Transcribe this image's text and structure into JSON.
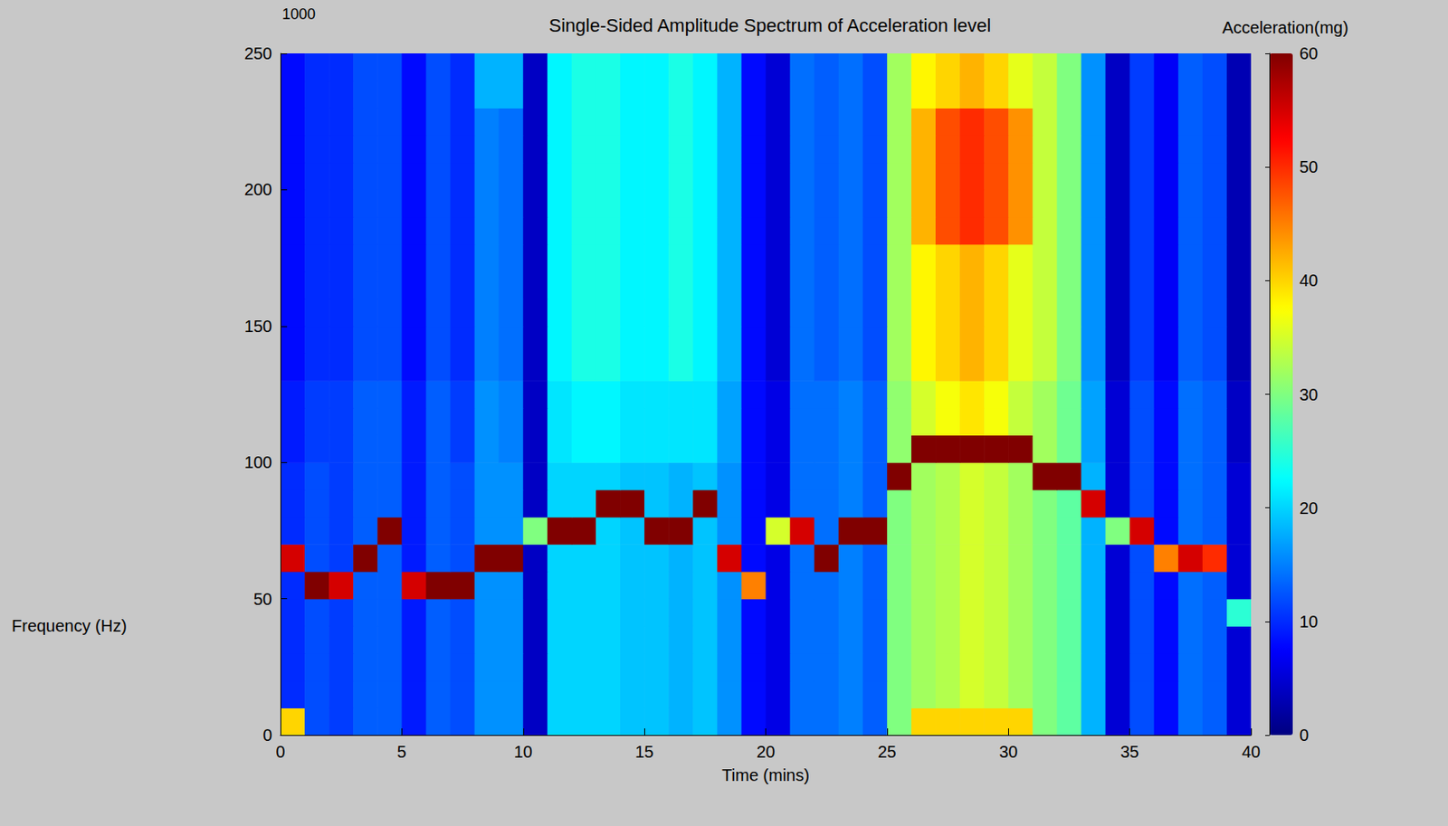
{
  "chart_data": {
    "type": "heatmap",
    "title": "Single-Sided Amplitude Spectrum of Acceleration level",
    "x_label": "Time (mins)",
    "y_label": "Frequency (Hz)",
    "annotations": [
      "1000"
    ],
    "xlim": [
      0,
      40
    ],
    "xticks": [
      0,
      5,
      10,
      15,
      20,
      25,
      30,
      35,
      40
    ],
    "ylim": [
      0,
      250
    ],
    "yticks": [
      0,
      50,
      100,
      150,
      200,
      250
    ],
    "x_edges": [
      0,
      1,
      2,
      3,
      4,
      5,
      6,
      7,
      8,
      9,
      10,
      11,
      12,
      13,
      14,
      15,
      16,
      17,
      18,
      19,
      20,
      21,
      22,
      23,
      24,
      25,
      26,
      27,
      28,
      29,
      30,
      31,
      32,
      33,
      34,
      35,
      36,
      37,
      38,
      39,
      40
    ],
    "y_edges": [
      0,
      10,
      20,
      30,
      40,
      50,
      60,
      70,
      80,
      90,
      100,
      110,
      120,
      130,
      140,
      150,
      160,
      170,
      180,
      190,
      200,
      210,
      220,
      230,
      240,
      250
    ],
    "z": [
      [
        40,
        12,
        11,
        13,
        13,
        9,
        13,
        12,
        16,
        16,
        4,
        20,
        20,
        20,
        19,
        19,
        18,
        19,
        16,
        8,
        6,
        14,
        14,
        15,
        13,
        30,
        40,
        40,
        40,
        40,
        40,
        30,
        28,
        18,
        5,
        12,
        8,
        14,
        13,
        5
      ],
      [
        10,
        12,
        11,
        13,
        13,
        9,
        13,
        12,
        16,
        16,
        4,
        20,
        20,
        20,
        19,
        19,
        18,
        19,
        16,
        8,
        6,
        14,
        14,
        15,
        13,
        30,
        32,
        33,
        35,
        34,
        32,
        30,
        28,
        18,
        5,
        12,
        8,
        14,
        13,
        5
      ],
      [
        10,
        12,
        11,
        13,
        13,
        9,
        13,
        12,
        16,
        16,
        4,
        20,
        20,
        20,
        19,
        19,
        18,
        19,
        16,
        8,
        6,
        14,
        14,
        15,
        13,
        30,
        32,
        33,
        35,
        34,
        32,
        30,
        28,
        18,
        5,
        12,
        8,
        14,
        13,
        5
      ],
      [
        10,
        12,
        11,
        13,
        13,
        9,
        13,
        12,
        16,
        16,
        4,
        20,
        20,
        20,
        19,
        19,
        18,
        19,
        16,
        8,
        6,
        14,
        14,
        15,
        13,
        30,
        32,
        33,
        35,
        34,
        32,
        30,
        28,
        18,
        5,
        12,
        8,
        14,
        13,
        5
      ],
      [
        10,
        12,
        11,
        13,
        13,
        9,
        13,
        12,
        16,
        16,
        4,
        20,
        20,
        20,
        19,
        19,
        18,
        19,
        16,
        8,
        6,
        14,
        14,
        15,
        13,
        30,
        32,
        33,
        35,
        34,
        32,
        30,
        28,
        18,
        5,
        12,
        8,
        14,
        13,
        25
      ],
      [
        10,
        60,
        55,
        13,
        13,
        55,
        60,
        60,
        16,
        16,
        4,
        20,
        20,
        20,
        19,
        19,
        18,
        19,
        16,
        45,
        6,
        14,
        14,
        15,
        13,
        30,
        32,
        33,
        35,
        34,
        32,
        30,
        28,
        18,
        5,
        12,
        8,
        14,
        13,
        5
      ],
      [
        55,
        12,
        11,
        60,
        13,
        9,
        13,
        12,
        60,
        60,
        4,
        20,
        20,
        20,
        19,
        19,
        18,
        19,
        55,
        8,
        6,
        14,
        60,
        15,
        13,
        30,
        32,
        33,
        35,
        34,
        32,
        30,
        28,
        18,
        5,
        12,
        45,
        55,
        50,
        5
      ],
      [
        10,
        12,
        11,
        13,
        60,
        9,
        13,
        12,
        16,
        16,
        30,
        60,
        60,
        20,
        19,
        60,
        60,
        19,
        16,
        8,
        35,
        55,
        14,
        60,
        60,
        30,
        32,
        33,
        35,
        34,
        32,
        30,
        28,
        18,
        30,
        55,
        8,
        14,
        13,
        5
      ],
      [
        10,
        12,
        11,
        13,
        13,
        9,
        13,
        12,
        16,
        16,
        4,
        20,
        20,
        60,
        60,
        19,
        18,
        60,
        16,
        8,
        6,
        14,
        14,
        15,
        13,
        30,
        32,
        33,
        35,
        34,
        32,
        30,
        28,
        55,
        5,
        12,
        8,
        14,
        13,
        5
      ],
      [
        10,
        12,
        11,
        13,
        13,
        9,
        13,
        12,
        16,
        16,
        4,
        20,
        20,
        20,
        19,
        19,
        18,
        19,
        16,
        8,
        6,
        14,
        14,
        15,
        13,
        60,
        32,
        33,
        35,
        34,
        32,
        60,
        60,
        18,
        5,
        12,
        8,
        14,
        13,
        5
      ],
      [
        9,
        11,
        11,
        13,
        13,
        9,
        13,
        11,
        16,
        15,
        4,
        21,
        22,
        22,
        21,
        21,
        21,
        21,
        17,
        8,
        6,
        14,
        14,
        15,
        13,
        31,
        60,
        60,
        60,
        60,
        60,
        32,
        29,
        17,
        5,
        12,
        8,
        14,
        13,
        4
      ],
      [
        9,
        11,
        11,
        13,
        13,
        9,
        13,
        11,
        16,
        15,
        4,
        21,
        22,
        22,
        21,
        21,
        21,
        21,
        17,
        8,
        6,
        14,
        14,
        15,
        13,
        31,
        35,
        37,
        39,
        37,
        34,
        32,
        29,
        17,
        5,
        12,
        8,
        14,
        13,
        4
      ],
      [
        9,
        11,
        11,
        13,
        13,
        9,
        13,
        11,
        16,
        15,
        4,
        21,
        22,
        22,
        21,
        21,
        21,
        21,
        17,
        8,
        6,
        14,
        14,
        15,
        13,
        31,
        35,
        37,
        39,
        37,
        34,
        32,
        29,
        17,
        5,
        12,
        8,
        14,
        13,
        4
      ],
      [
        8,
        10,
        10,
        12,
        12,
        8,
        12,
        10,
        15,
        14,
        4,
        22,
        24,
        24,
        22,
        22,
        24,
        22,
        18,
        8,
        5,
        14,
        13,
        14,
        12,
        32,
        38,
        40,
        42,
        40,
        36,
        34,
        30,
        16,
        4,
        11,
        7,
        13,
        12,
        3
      ],
      [
        8,
        10,
        10,
        12,
        12,
        8,
        12,
        10,
        15,
        14,
        4,
        22,
        24,
        24,
        22,
        22,
        24,
        22,
        18,
        8,
        5,
        14,
        13,
        14,
        12,
        32,
        38,
        40,
        42,
        40,
        36,
        34,
        30,
        16,
        4,
        11,
        7,
        13,
        12,
        3
      ],
      [
        8,
        10,
        10,
        12,
        12,
        8,
        12,
        10,
        15,
        14,
        4,
        22,
        24,
        24,
        22,
        22,
        24,
        22,
        18,
        8,
        5,
        14,
        13,
        14,
        12,
        32,
        38,
        40,
        42,
        40,
        36,
        34,
        30,
        16,
        4,
        11,
        7,
        13,
        12,
        3
      ],
      [
        8,
        10,
        10,
        12,
        12,
        8,
        12,
        10,
        15,
        14,
        4,
        22,
        24,
        24,
        22,
        22,
        24,
        22,
        18,
        8,
        5,
        14,
        13,
        14,
        12,
        32,
        38,
        40,
        42,
        40,
        36,
        34,
        30,
        16,
        4,
        11,
        7,
        13,
        12,
        3
      ],
      [
        8,
        10,
        10,
        12,
        12,
        8,
        12,
        10,
        15,
        14,
        4,
        22,
        24,
        24,
        22,
        22,
        24,
        22,
        18,
        8,
        5,
        14,
        13,
        14,
        12,
        32,
        38,
        40,
        42,
        40,
        36,
        34,
        30,
        16,
        4,
        11,
        7,
        13,
        12,
        3
      ],
      [
        8,
        10,
        10,
        12,
        12,
        8,
        12,
        10,
        15,
        14,
        4,
        22,
        24,
        24,
        22,
        22,
        24,
        22,
        18,
        8,
        5,
        14,
        13,
        14,
        12,
        32,
        42,
        48,
        50,
        48,
        44,
        34,
        30,
        16,
        4,
        11,
        7,
        13,
        12,
        3
      ],
      [
        8,
        10,
        10,
        12,
        12,
        8,
        12,
        10,
        15,
        14,
        4,
        22,
        24,
        24,
        22,
        22,
        24,
        22,
        18,
        8,
        5,
        14,
        13,
        14,
        12,
        32,
        42,
        48,
        50,
        48,
        44,
        34,
        30,
        16,
        4,
        11,
        7,
        13,
        12,
        3
      ],
      [
        8,
        10,
        10,
        12,
        12,
        8,
        12,
        10,
        15,
        14,
        4,
        22,
        24,
        24,
        22,
        22,
        24,
        22,
        18,
        8,
        5,
        14,
        13,
        14,
        12,
        32,
        42,
        48,
        50,
        48,
        44,
        34,
        30,
        16,
        4,
        11,
        7,
        13,
        12,
        3
      ],
      [
        8,
        10,
        10,
        12,
        12,
        8,
        12,
        10,
        15,
        14,
        4,
        22,
        24,
        24,
        22,
        22,
        24,
        22,
        18,
        8,
        5,
        14,
        13,
        14,
        12,
        32,
        42,
        48,
        50,
        48,
        44,
        34,
        30,
        16,
        4,
        11,
        7,
        13,
        12,
        3
      ],
      [
        8,
        10,
        10,
        12,
        12,
        8,
        12,
        10,
        15,
        14,
        4,
        22,
        24,
        24,
        22,
        22,
        24,
        22,
        18,
        8,
        5,
        14,
        13,
        14,
        12,
        32,
        42,
        48,
        50,
        48,
        44,
        34,
        30,
        16,
        4,
        11,
        7,
        13,
        12,
        3
      ],
      [
        8,
        10,
        10,
        12,
        12,
        8,
        12,
        10,
        18,
        18,
        4,
        22,
        24,
        24,
        22,
        22,
        24,
        22,
        18,
        8,
        5,
        14,
        13,
        14,
        12,
        32,
        38,
        40,
        42,
        40,
        36,
        34,
        30,
        16,
        4,
        11,
        7,
        13,
        12,
        3
      ],
      [
        8,
        10,
        10,
        12,
        12,
        8,
        12,
        10,
        18,
        18,
        4,
        22,
        24,
        24,
        22,
        22,
        24,
        22,
        18,
        8,
        5,
        14,
        13,
        14,
        12,
        32,
        38,
        40,
        42,
        40,
        36,
        34,
        30,
        16,
        4,
        11,
        7,
        13,
        12,
        3
      ]
    ],
    "colorbar": {
      "label": "Acceleration(mg)",
      "range": [
        0,
        60
      ],
      "ticks": [
        0,
        10,
        20,
        30,
        40,
        50,
        60
      ]
    }
  }
}
